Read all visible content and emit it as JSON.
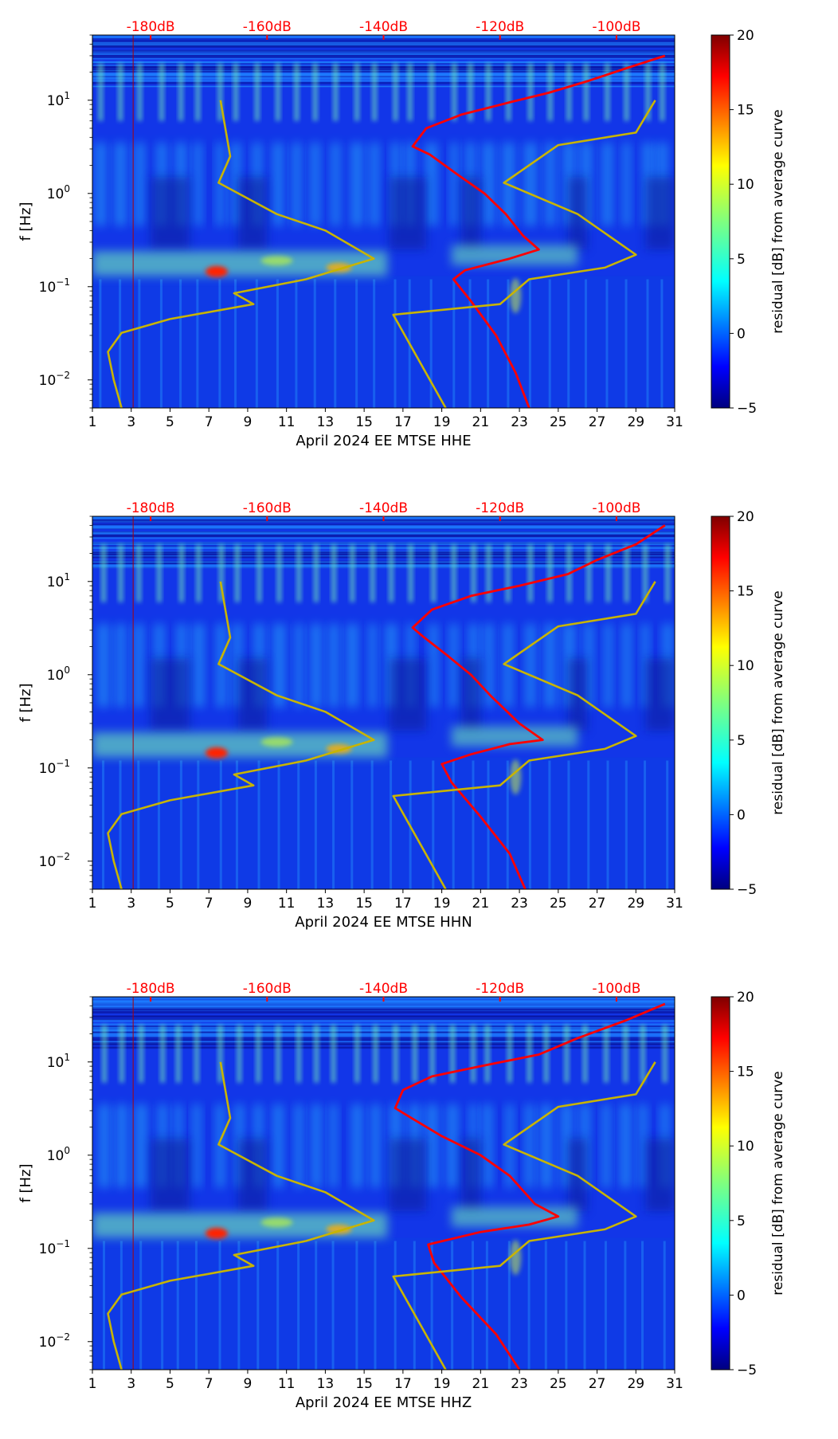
{
  "chart_data": [
    {
      "type": "heatmap",
      "component": "HHE",
      "xlabel": "April 2024 EE MTSE  HHE",
      "ylabel": "f [Hz]",
      "xlim": [
        1,
        31
      ],
      "ylim": [
        0.005,
        50
      ],
      "yscale": "log",
      "x_ticks": [
        "1",
        "3",
        "5",
        "7",
        "9",
        "11",
        "13",
        "15",
        "17",
        "19",
        "21",
        "23",
        "25",
        "27",
        "29",
        "31"
      ],
      "y_ticks": [
        {
          "base": "10",
          "exp": "1"
        },
        {
          "base": "10",
          "exp": "0"
        },
        {
          "base": "10",
          "exp": "−1"
        },
        {
          "base": "10",
          "exp": "−2"
        }
      ],
      "top_axis_labels": [
        "-180dB",
        "-160dB",
        "-140dB",
        "-120dB",
        "-100dB"
      ],
      "colorbar": {
        "label": "residual [dB] from average curve",
        "vmin": -5,
        "vmax": 20,
        "ticks": [
          "−5",
          "0",
          "5",
          "10",
          "15",
          "20"
        ],
        "colormap": "jet"
      },
      "series": [
        {
          "name": "red PSD curve",
          "color": "#ff0000",
          "points": [
            [
              23.5,
              0.005
            ],
            [
              22.8,
              0.012
            ],
            [
              21.8,
              0.03
            ],
            [
              20.5,
              0.07
            ],
            [
              19.6,
              0.12
            ],
            [
              20.2,
              0.15
            ],
            [
              22.5,
              0.2
            ],
            [
              24.0,
              0.25
            ],
            [
              23.2,
              0.35
            ],
            [
              22.3,
              0.6
            ],
            [
              21.2,
              1.0
            ],
            [
              19.8,
              1.6
            ],
            [
              18.4,
              2.6
            ],
            [
              17.5,
              3.2
            ],
            [
              18.2,
              5.0
            ],
            [
              20.0,
              7.0
            ],
            [
              22.5,
              9.5
            ],
            [
              24.5,
              12
            ],
            [
              26.5,
              16
            ],
            [
              28.5,
              22
            ],
            [
              30.5,
              30
            ]
          ]
        },
        {
          "name": "yellow reference curve",
          "color": "#c8b400",
          "points": [
            [
              2.5,
              0.005
            ],
            [
              2.1,
              0.01
            ],
            [
              1.8,
              0.02
            ],
            [
              2.5,
              0.032
            ],
            [
              5.0,
              0.045
            ],
            [
              9.3,
              0.065
            ],
            [
              8.3,
              0.085
            ],
            [
              12.0,
              0.12
            ],
            [
              15.5,
              0.2
            ],
            [
              13.0,
              0.4
            ],
            [
              10.5,
              0.6
            ],
            [
              7.5,
              1.3
            ],
            [
              8.1,
              2.5
            ],
            [
              7.6,
              10
            ],
            [
              19.2,
              0.005
            ],
            [
              16.5,
              0.05
            ],
            [
              22.0,
              0.065
            ],
            [
              23.5,
              0.12
            ],
            [
              27.4,
              0.16
            ],
            [
              29.0,
              0.22
            ],
            [
              26.0,
              0.6
            ],
            [
              22.2,
              1.3
            ],
            [
              25.0,
              3.3
            ],
            [
              29.0,
              4.5
            ],
            [
              30.0,
              10
            ]
          ]
        }
      ]
    },
    {
      "type": "heatmap",
      "component": "HHN",
      "xlabel": "April 2024 EE MTSE  HHN",
      "ylabel": "f [Hz]",
      "xlim": [
        1,
        31
      ],
      "ylim": [
        0.005,
        50
      ],
      "yscale": "log",
      "x_ticks": [
        "1",
        "3",
        "5",
        "7",
        "9",
        "11",
        "13",
        "15",
        "17",
        "19",
        "21",
        "23",
        "25",
        "27",
        "29",
        "31"
      ],
      "y_ticks": [
        {
          "base": "10",
          "exp": "1"
        },
        {
          "base": "10",
          "exp": "0"
        },
        {
          "base": "10",
          "exp": "−1"
        },
        {
          "base": "10",
          "exp": "−2"
        }
      ],
      "top_axis_labels": [
        "-180dB",
        "-160dB",
        "-140dB",
        "-120dB",
        "-100dB"
      ],
      "colorbar": {
        "label": "residual [dB] from average curve",
        "vmin": -5,
        "vmax": 20,
        "ticks": [
          "−5",
          "0",
          "5",
          "10",
          "15",
          "20"
        ],
        "colormap": "jet"
      },
      "series": [
        {
          "name": "red PSD curve",
          "color": "#ff0000",
          "points": [
            [
              23.3,
              0.005
            ],
            [
              22.5,
              0.012
            ],
            [
              21.0,
              0.03
            ],
            [
              19.5,
              0.07
            ],
            [
              19.0,
              0.11
            ],
            [
              20.5,
              0.14
            ],
            [
              22.5,
              0.18
            ],
            [
              24.2,
              0.2
            ],
            [
              23.0,
              0.3
            ],
            [
              21.5,
              0.6
            ],
            [
              20.5,
              1.0
            ],
            [
              19.3,
              1.6
            ],
            [
              18.0,
              2.6
            ],
            [
              17.5,
              3.2
            ],
            [
              18.5,
              5.0
            ],
            [
              20.5,
              7.0
            ],
            [
              23.0,
              9.0
            ],
            [
              25.5,
              12
            ],
            [
              27.0,
              17
            ],
            [
              29.0,
              25
            ],
            [
              30.5,
              40
            ]
          ]
        },
        {
          "name": "yellow reference curve",
          "color": "#c8b400",
          "points": [
            [
              2.5,
              0.005
            ],
            [
              2.1,
              0.01
            ],
            [
              1.8,
              0.02
            ],
            [
              2.5,
              0.032
            ],
            [
              5.0,
              0.045
            ],
            [
              9.3,
              0.065
            ],
            [
              8.3,
              0.085
            ],
            [
              12.0,
              0.12
            ],
            [
              15.5,
              0.2
            ],
            [
              13.0,
              0.4
            ],
            [
              10.5,
              0.6
            ],
            [
              7.5,
              1.3
            ],
            [
              8.1,
              2.5
            ],
            [
              7.6,
              10
            ],
            [
              19.2,
              0.005
            ],
            [
              16.5,
              0.05
            ],
            [
              22.0,
              0.065
            ],
            [
              23.5,
              0.12
            ],
            [
              27.4,
              0.16
            ],
            [
              29.0,
              0.22
            ],
            [
              26.0,
              0.6
            ],
            [
              22.2,
              1.3
            ],
            [
              25.0,
              3.3
            ],
            [
              29.0,
              4.5
            ],
            [
              30.0,
              10
            ]
          ]
        }
      ]
    },
    {
      "type": "heatmap",
      "component": "HHZ",
      "xlabel": "April 2024 EE MTSE  HHZ",
      "ylabel": "f [Hz]",
      "xlim": [
        1,
        31
      ],
      "ylim": [
        0.005,
        50
      ],
      "yscale": "log",
      "x_ticks": [
        "1",
        "3",
        "5",
        "7",
        "9",
        "11",
        "13",
        "15",
        "17",
        "19",
        "21",
        "23",
        "25",
        "27",
        "29",
        "31"
      ],
      "y_ticks": [
        {
          "base": "10",
          "exp": "1"
        },
        {
          "base": "10",
          "exp": "0"
        },
        {
          "base": "10",
          "exp": "−1"
        },
        {
          "base": "10",
          "exp": "−2"
        }
      ],
      "top_axis_labels": [
        "-180dB",
        "-160dB",
        "-140dB",
        "-120dB",
        "-100dB"
      ],
      "colorbar": {
        "label": "residual [dB] from average curve",
        "vmin": -5,
        "vmax": 20,
        "ticks": [
          "−5",
          "0",
          "5",
          "10",
          "15",
          "20"
        ],
        "colormap": "jet"
      },
      "series": [
        {
          "name": "red PSD curve",
          "color": "#ff0000",
          "points": [
            [
              23.0,
              0.005
            ],
            [
              21.8,
              0.012
            ],
            [
              20.0,
              0.03
            ],
            [
              18.6,
              0.07
            ],
            [
              18.3,
              0.11
            ],
            [
              21.0,
              0.15
            ],
            [
              23.5,
              0.18
            ],
            [
              25.0,
              0.22
            ],
            [
              23.8,
              0.3
            ],
            [
              22.5,
              0.6
            ],
            [
              21.0,
              1.0
            ],
            [
              19.0,
              1.6
            ],
            [
              17.3,
              2.6
            ],
            [
              16.6,
              3.2
            ],
            [
              17.0,
              5.0
            ],
            [
              18.5,
              7.0
            ],
            [
              21.0,
              9.0
            ],
            [
              24.0,
              12
            ],
            [
              26.0,
              18
            ],
            [
              28.5,
              28
            ],
            [
              30.5,
              42
            ]
          ]
        },
        {
          "name": "yellow reference curve",
          "color": "#c8b400",
          "points": [
            [
              2.5,
              0.005
            ],
            [
              2.1,
              0.01
            ],
            [
              1.8,
              0.02
            ],
            [
              2.5,
              0.032
            ],
            [
              5.0,
              0.045
            ],
            [
              9.3,
              0.065
            ],
            [
              8.3,
              0.085
            ],
            [
              12.0,
              0.12
            ],
            [
              15.5,
              0.2
            ],
            [
              13.0,
              0.4
            ],
            [
              10.5,
              0.6
            ],
            [
              7.5,
              1.3
            ],
            [
              8.1,
              2.5
            ],
            [
              7.6,
              10
            ],
            [
              19.2,
              0.005
            ],
            [
              16.5,
              0.05
            ],
            [
              22.0,
              0.065
            ],
            [
              23.5,
              0.12
            ],
            [
              27.4,
              0.16
            ],
            [
              29.0,
              0.22
            ],
            [
              26.0,
              0.6
            ],
            [
              22.2,
              1.3
            ],
            [
              25.0,
              3.3
            ],
            [
              29.0,
              4.5
            ],
            [
              30.0,
              10
            ]
          ]
        }
      ]
    }
  ]
}
